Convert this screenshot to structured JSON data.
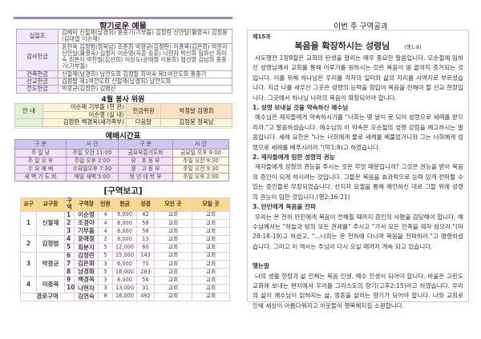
{
  "offerings": {
    "title": "향기로운 예물",
    "rows": [
      {
        "label": "십일조",
        "value": "김혜미 신철재(남경희) 홍중기(기부돌) 김정란 신안달(황영숙) 김정봉(김대엽 이순재)"
      },
      {
        "label": "감사헌금",
        "value": "윤현옥 김정범(정옥남) 조준희 박광균(김정란) 이종목(김은희) 박문자 신안달(황영숙) 김정자 이순영(지훈 승훈) 나현자 박선희 임화선 최미숙 최분지 박찬월(김선희) 이상도(윤애정 이용희) 염선영 김남희 홍중기(기부돌)"
      },
      {
        "label": "건축헌금",
        "value": "신철재(남경희) 남전도회 김정필 최미숙 제1여전도회 홍중기"
      },
      {
        "label": "선교헌금",
        "value": "김정필 제1여전도회 신철재(남경희) 남전도회"
      },
      {
        "label": "전도헌금",
        "value": "박광균(김정란) 김명선"
      }
    ]
  },
  "service": {
    "title": "4월 봉사 위원",
    "guide_label": "안 내",
    "guide": [
      "이순재 기부돌 (현 관)",
      "이순영 (실 내)",
      "김정란 백경옥(새가족부)"
    ],
    "offering_label": "헌금위원",
    "offering": "박정달 김명희",
    "next_label": "다음달",
    "next": "김정봉 정옥남"
  },
  "schedule": {
    "title": "예배시간표",
    "headers": [
      "구 분",
      "시 간",
      "구 분",
      "시 간"
    ],
    "rows": [
      [
        "주 일 낮",
        "주일 오전 11:00",
        "금요부흥기도회",
        "금요일 오후 9:00"
      ],
      [
        "주 일 오 후",
        "주일 오후 2:00",
        "유 . 초 등 부",
        "주일 오전 9:30"
      ],
      [
        "수 요 예 배",
        "수요일오후 7:30",
        "중 . 고 등 부",
        "주일 오전 9:30"
      ],
      [
        "새 벽 기 도 회",
        "매일 새벽 5:00",
        "청 년 대 학 부",
        "주일 오후 2:00"
      ]
    ]
  },
  "district": {
    "title": "[구역보고]",
    "headers": [
      "교구",
      "교구장",
      "구역",
      "구역장",
      "인원",
      "헌금",
      "성경",
      "모인 곳",
      "모일 곳"
    ],
    "groups": [
      {
        "no": "1",
        "leader": "신철재",
        "rows": [
          [
            "1",
            "이순영",
            "4",
            "9,000",
            "42",
            "교회",
            "교회"
          ],
          [
            "2",
            "조경아",
            "4",
            "8,000",
            "58",
            "교회",
            "교회"
          ],
          [
            "3",
            "기부돌",
            "4",
            "8,000",
            "58",
            "교회",
            "교회"
          ]
        ]
      },
      {
        "no": "2",
        "leader": "김정범",
        "rows": [
          [
            "4",
            "윤애정",
            "2",
            "8,000",
            "13",
            "교회",
            "교회"
          ],
          [
            "5",
            "최분지",
            "5",
            "12,000",
            "60",
            "교회",
            "교회"
          ]
        ]
      },
      {
        "no": "3",
        "leader": "박광균",
        "rows": [
          [
            "6",
            "김정란",
            "5",
            "15,000",
            "143",
            "교회",
            "교회"
          ],
          [
            "7",
            "김은희",
            "3",
            "6,000",
            "70",
            "교회",
            "교회"
          ],
          [
            "8",
            "남경화",
            "5",
            "16,000",
            "283",
            "교회",
            "교회"
          ]
        ]
      },
      {
        "no": "4",
        "leader": "이종목",
        "rows": [
          [
            "9",
            "백경옥",
            "3",
            "8,000",
            "56",
            "교회",
            "교회"
          ],
          [
            "10",
            "나현자",
            "3",
            "13,000",
            "31",
            "교회",
            "교회"
          ]
        ]
      }
    ],
    "senior": {
      "label": "경로구역",
      "leader": "김연숙",
      "count": "8",
      "amount": "16,000",
      "bible": "492",
      "met": "교회",
      "meet": "교회"
    }
  },
  "lesson": {
    "header": "이번 주 구역공과",
    "number": "제15과",
    "title": "복음을 확장하시는 성령님",
    "ref": "(행1:8)",
    "intro": "사도행전 1장8절은 교회의 탄생을 알리는 매우 중요한 말씀입니다. 오순절에 임하신 성령님께서 교회를 통해 이루기를 원하시는 것은 복음이 땅 끝까지 증거되는 것입니다. 이를 위해 하나님은 우리를 각자의 일터와 삶의 자리를 사역지로 부르셨습니다. 지금 나를 세우신 그곳은 성령의 능력을 힘입어 복음을 전해야 할 선교 현장입니다. 그곳에서 하나님 나라의 복음이 확장되어야 합니다.",
    "sections": [
      {
        "heading": "1. 성령 보내실 것을 약속하신 예수님",
        "body": "예수님은 제자들에게 약속하시기를 \"너희는 몇 날이 못 되어 성령으로 세례를 받으리라.\"고 말씀하셨습니다. 예수님의 이 약속은 오순절의 성령 강림을 예고하시는 말씀입니다. 세례 요한은 \"나는 너희에게 물로 세례를 베풀었거니와 그는 너희에게 성령으로 세례를 베푸시리라.\"(막1:8)고 하였습니다."
      },
      {
        "heading": "2. 제자들에게 임한 성령의 권능",
        "body": "제자들에게 성령의 권능을 주시는 것은 무엇 때문입니까? 그것은 권능을 받아 복음의 증인이 되게 하시려는 것입니다. 그들은 복음을 효과적으로 능력 있게 전파할 수 있는 증인들로 무장되었습니다. 선지자 요엘을 통해 예언하신 대로 그들 위에 성령의 권능이 임한 것입니다.(행2:16-21)"
      },
      {
        "heading": "3. 만민에게 복음을 전파",
        "body": "우리는 온 천하 만민에게 복음이 전해질 때까지 증인의 사명을 감당해야 합니다. 예수님께서는 \"하늘과 땅의 모든 권세를\" 주시고 \"가서 모든 민족을 제자 삼으라.\"(마28:18-19)고 하셨고, \"...너희는 온 천하에 다니며 복음을 전파하라.\"고 명령하셨습니다. 그리고 이 역사는 주님이 다시 오실 때까지 계속 되고 있습니다."
      },
      {
        "heading": "맺는말",
        "body": "나의 생활 현장과 삶 전체는 복음 인생, 예수 인생이 되어야 합니다. 바울은 고린도교회에 보내는 편지에서 우리를 그리스도의 향기(고후2:15)라고 하였습니다. 우리의 삶이 예수님이 읽혀지는 삶, 영혼을 살리는 향기가 되어야 합니다. 나와 교회로 인해 세상이 아름다워지고 이웃들이 행복해지길 소원합니다."
      }
    ]
  }
}
